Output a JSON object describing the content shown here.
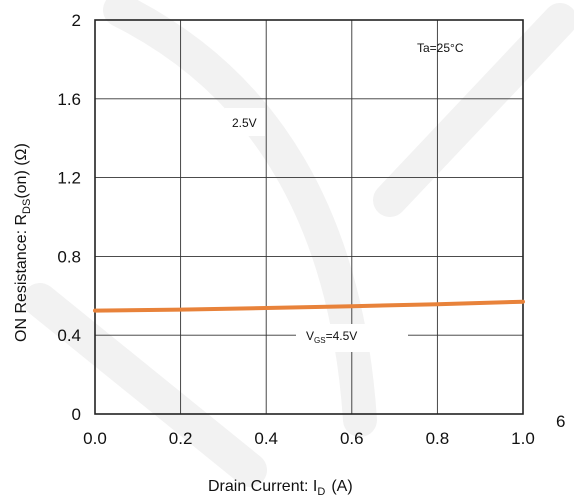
{
  "chart_data": {
    "type": "line",
    "title": "",
    "xlabel": "Drain Current: I",
    "xlabel_sub": "D",
    "xlabel_unit": "(A)",
    "ylabel": "ON Resistance: R",
    "ylabel_sub": "DS",
    "ylabel_unit": "(on) (Ω)",
    "xlim": [
      0,
      1.0
    ],
    "ylim": [
      0,
      2
    ],
    "x_ticks": [
      "0.0",
      "0.2",
      "0.4",
      "0.6",
      "0.8",
      "1.0"
    ],
    "y_ticks": [
      "0",
      "0.4",
      "0.8",
      "1.2",
      "1.6",
      "2"
    ],
    "grid": true,
    "series": [
      {
        "name": "V",
        "name_sub": "GS",
        "name_suffix": "=4.5V",
        "color": "#e8823a",
        "x": [
          0.0,
          0.2,
          0.4,
          0.6,
          0.8,
          1.0
        ],
        "y": [
          0.525,
          0.53,
          0.538,
          0.547,
          0.557,
          0.57
        ]
      }
    ],
    "annotations": {
      "temperature": "Ta=25°C",
      "curve_25": "2.5V"
    },
    "grid_color": "#333333",
    "page_mark": "6"
  }
}
